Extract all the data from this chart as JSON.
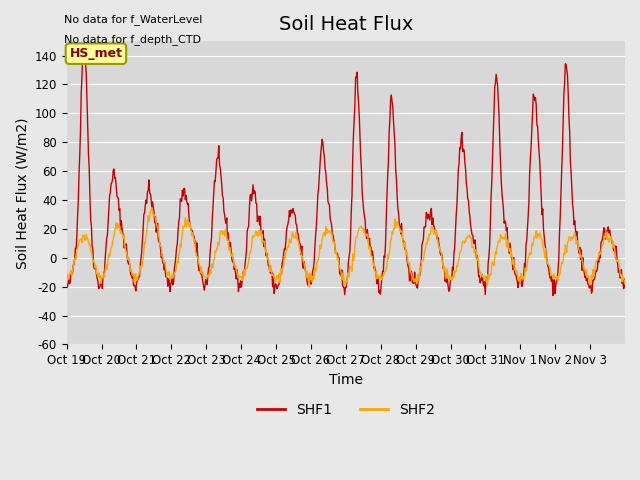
{
  "title": "Soil Heat Flux",
  "ylabel": "Soil Heat Flux (W/m2)",
  "xlabel": "Time",
  "ylim": [
    -60,
    150
  ],
  "yticks": [
    -60,
    -40,
    -20,
    0,
    20,
    40,
    60,
    80,
    100,
    120,
    140
  ],
  "xtick_labels": [
    "Oct 19",
    "Oct 20",
    "Oct 21",
    "Oct 22",
    "Oct 23",
    "Oct 24",
    "Oct 25",
    "Oct 26",
    "Oct 27",
    "Oct 28",
    "Oct 29",
    "Oct 30",
    "Oct 31",
    "Nov 1",
    "Nov 2",
    "Nov 3"
  ],
  "shf1_color": "#cc0000",
  "shf2_color": "#ffa500",
  "bg_color": "#e8e8e8",
  "plot_bg_color": "#d8d8d8",
  "annotation_text1": "No data for f_WaterLevel",
  "annotation_text2": "No data for f_depth_CTD",
  "legend_label": "HS_met",
  "legend_box_color": "#ffff99",
  "legend_box_border": "#999900",
  "title_fontsize": 14,
  "label_fontsize": 10,
  "tick_fontsize": 8.5,
  "n_days": 16,
  "n_per_day": 48
}
